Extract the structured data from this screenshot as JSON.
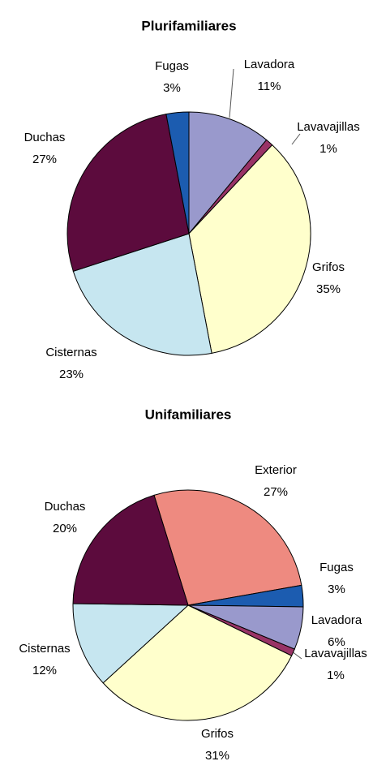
{
  "chart_data": [
    {
      "type": "pie",
      "title": "Plurifamiliares",
      "categories": [
        "Lavadora",
        "Lavavajillas",
        "Grifos",
        "Cisternas",
        "Duchas",
        "Fugas"
      ],
      "values": [
        11,
        1,
        35,
        23,
        27,
        3
      ],
      "value_labels": [
        "11%",
        "1%",
        "35%",
        "23%",
        "27%",
        "3%"
      ],
      "colors": [
        "#9999cc",
        "#993366",
        "#ffffcc",
        "#c6e6f0",
        "#5c0b3d",
        "#1c5cb0"
      ]
    },
    {
      "type": "pie",
      "title": "Unifamiliares",
      "categories": [
        "Exterior",
        "Fugas",
        "Lavadora",
        "Lavavajillas",
        "Grifos",
        "Cisternas",
        "Duchas"
      ],
      "values": [
        27,
        3,
        6,
        1,
        31,
        12,
        20
      ],
      "value_labels": [
        "27%",
        "3%",
        "6%",
        "1%",
        "31%",
        "12%",
        "20%"
      ],
      "colors": [
        "#ee8a80",
        "#1c5cb0",
        "#9999cc",
        "#993366",
        "#ffffcc",
        "#c6e6f0",
        "#5c0b3d"
      ]
    }
  ]
}
